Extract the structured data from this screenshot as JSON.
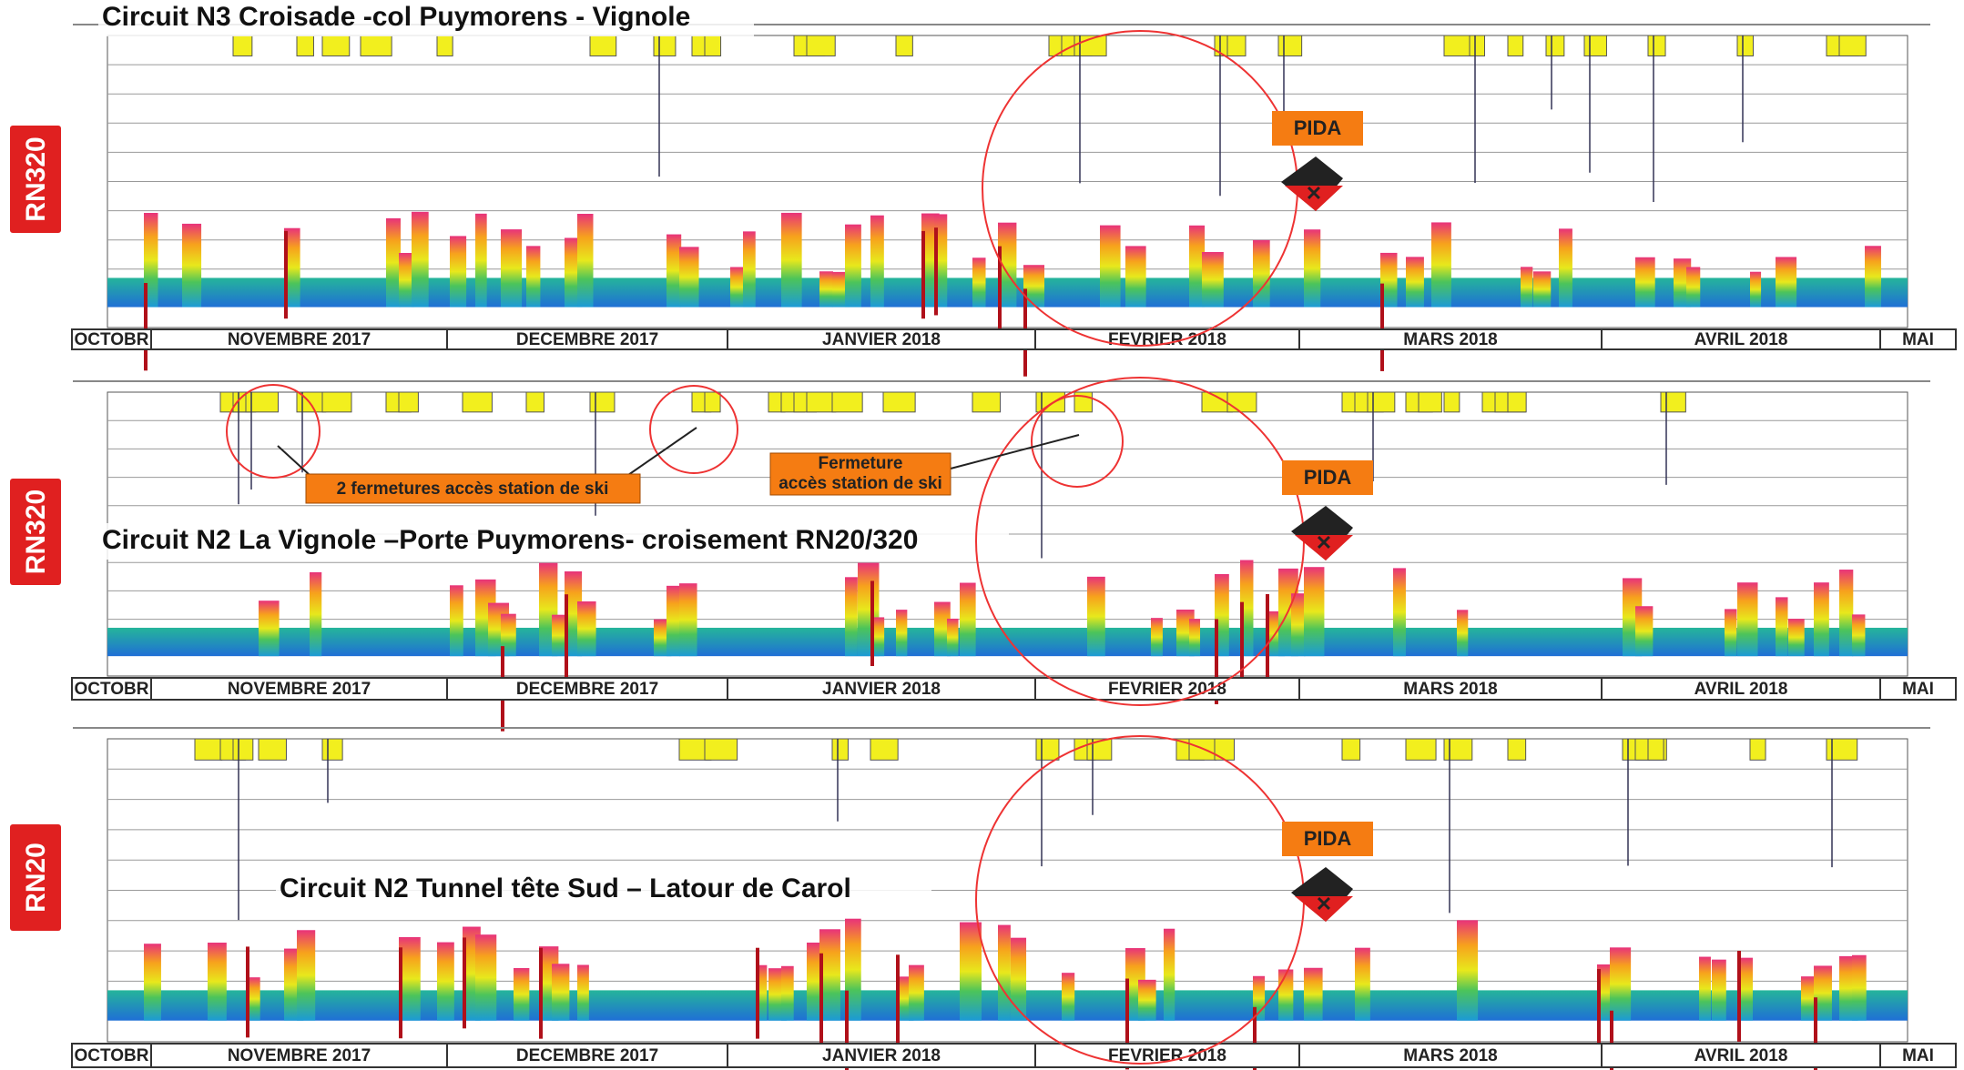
{
  "panels": [
    {
      "road": "RN320",
      "title": "Circuit N3 Croisade -col Puymorens - Vignole",
      "months": [
        "OCTOBR",
        "NOVEMBRE 2017",
        "DECEMBRE 2017",
        "JANVIER 2018",
        "FEVRIER 2018",
        "MARS 2018",
        "AVRIL 2018",
        "MAI"
      ],
      "pida": "PIDA"
    },
    {
      "road": "RN320",
      "title": "Circuit N2 La Vignole –Porte Puymorens-  croisement RN20/320",
      "months": [
        "OCTOBR",
        "NOVEMBRE 2017",
        "DECEMBRE 2017",
        "JANVIER 2018",
        "FEVRIER 2018",
        "MARS 2018",
        "AVRIL 2018",
        "MAI"
      ],
      "pida": "PIDA",
      "callouts": [
        "2 fermetures accès station de ski",
        "Fermeture",
        "accès station de ski"
      ]
    },
    {
      "road": "RN20",
      "title": "Circuit N2 Tunnel tête Sud – Latour de Carol",
      "months": [
        "OCTOBR",
        "NOVEMBRE 2017",
        "DECEMBRE 2017",
        "JANVIER 2018",
        "FEVRIER 2018",
        "MARS 2018",
        "AVRIL 2018",
        "MAI"
      ],
      "pida": "PIDA"
    }
  ]
}
